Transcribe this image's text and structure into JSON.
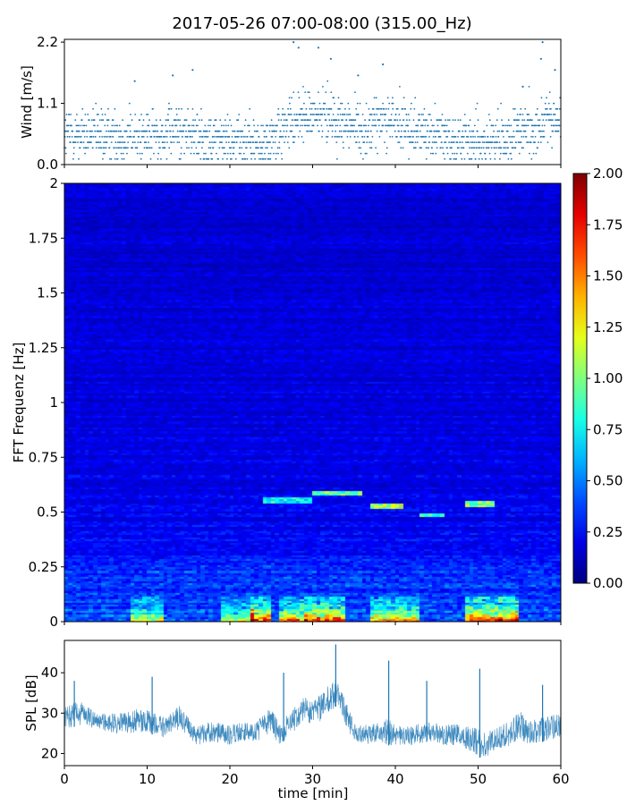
{
  "chart_data": [
    {
      "type": "scatter",
      "title": "2017-05-26 07:00-08:00 (315.00_Hz)",
      "ylabel": "Wind [m/s]",
      "xlim": [
        0,
        60
      ],
      "ylim": [
        0,
        2.25
      ],
      "yticks": [
        "0.0",
        "1.1",
        "2.2"
      ],
      "ytick_values": [
        0,
        1.1,
        2.2
      ],
      "marker_color": "#1f77b4",
      "sampling": "one reading per second, values quantized to 0.1 m/s",
      "mean_profile": {
        "x": [
          0,
          5,
          10,
          14,
          17,
          20,
          24,
          26,
          28,
          30,
          32,
          34,
          36,
          39,
          41,
          44,
          47,
          50,
          53,
          56,
          58,
          60
        ],
        "y": [
          0.55,
          0.5,
          0.5,
          0.6,
          0.45,
          0.45,
          0.35,
          0.55,
          0.8,
          0.9,
          0.85,
          0.75,
          0.6,
          0.85,
          0.65,
          0.6,
          0.45,
          0.4,
          0.45,
          0.6,
          0.8,
          0.75
        ]
      },
      "peaks": [
        {
          "x": 27.7,
          "y": 2.2
        },
        {
          "x": 28.3,
          "y": 2.1
        },
        {
          "x": 30.7,
          "y": 2.1
        },
        {
          "x": 32.2,
          "y": 1.9
        },
        {
          "x": 38.5,
          "y": 1.8
        },
        {
          "x": 57.8,
          "y": 2.2
        },
        {
          "x": 57.6,
          "y": 1.9
        },
        {
          "x": 13.1,
          "y": 1.6
        },
        {
          "x": 15.5,
          "y": 1.7
        },
        {
          "x": 8.5,
          "y": 1.5
        },
        {
          "x": 35.5,
          "y": 1.6
        },
        {
          "x": 55.4,
          "y": 1.4
        },
        {
          "x": 59.3,
          "y": 1.7
        }
      ]
    },
    {
      "type": "heatmap",
      "ylabel": "FFT Frequenz [Hz]",
      "xlim": [
        0,
        60
      ],
      "ylim": [
        0,
        2
      ],
      "yticks": [
        "0",
        "0.25",
        "0.5",
        "0.75",
        "1",
        "1.25",
        "1.5",
        "1.75",
        "2"
      ],
      "ytick_values": [
        0,
        0.25,
        0.5,
        0.75,
        1,
        1.25,
        1.5,
        1.75,
        2
      ],
      "colormap": "jet",
      "colorbar": {
        "range": [
          0,
          2
        ],
        "ticks": [
          "0.00",
          "0.25",
          "0.50",
          "0.75",
          "1.00",
          "1.25",
          "1.50",
          "1.75",
          "2.00"
        ],
        "tick_values": [
          0,
          0.25,
          0.5,
          0.75,
          1,
          1.25,
          1.5,
          1.75,
          2
        ]
      },
      "grid": {
        "time_bins": 120,
        "freq_bins": 220
      },
      "background_level": {
        "high_freq": 0.15,
        "low_freq": 0.3
      },
      "low_freq_activity": [
        {
          "t0": 8,
          "t1": 12,
          "level": 1.1
        },
        {
          "t0": 19,
          "t1": 23,
          "level": 1.0
        },
        {
          "t0": 22.5,
          "t1": 25,
          "level": 1.9
        },
        {
          "t0": 26,
          "t1": 29,
          "level": 1.5
        },
        {
          "t0": 29,
          "t1": 34,
          "level": 1.9
        },
        {
          "t0": 37,
          "t1": 43,
          "level": 1.5
        },
        {
          "t0": 48.5,
          "t1": 55,
          "level": 1.9
        }
      ],
      "tonal_streaks": [
        {
          "t0": 24,
          "t1": 30,
          "f": 0.56,
          "level": 0.7
        },
        {
          "t0": 30,
          "t1": 36,
          "f": 0.59,
          "level": 0.9
        },
        {
          "t0": 37,
          "t1": 41,
          "f": 0.53,
          "level": 1.0
        },
        {
          "t0": 43,
          "t1": 46,
          "f": 0.49,
          "level": 0.7
        },
        {
          "t0": 48.5,
          "t1": 52,
          "f": 0.54,
          "level": 0.9
        }
      ]
    },
    {
      "type": "line",
      "xlabel": "time [min]",
      "ylabel": "SPL [dB]",
      "xlim": [
        0,
        60
      ],
      "ylim": [
        17,
        48
      ],
      "xticks": [
        "0",
        "10",
        "20",
        "30",
        "40",
        "50",
        "60"
      ],
      "xtick_values": [
        0,
        10,
        20,
        30,
        40,
        50,
        60
      ],
      "yticks": [
        "20",
        "30",
        "40"
      ],
      "ytick_values": [
        20,
        30,
        40
      ],
      "line_color": "#1f77b4",
      "envelope": {
        "x": [
          0,
          2,
          4,
          6,
          8,
          10,
          12,
          14,
          15,
          16,
          18,
          20,
          22,
          23.5,
          25,
          26,
          27,
          28,
          29,
          30,
          31,
          32,
          33,
          34,
          35,
          36,
          38,
          39,
          40,
          42,
          44,
          46,
          48,
          50,
          51,
          52,
          54,
          55,
          56,
          58,
          60
        ],
        "low": [
          26,
          27,
          26,
          25,
          25,
          25,
          24,
          26,
          24,
          22,
          23,
          22,
          23,
          23,
          25,
          22,
          24,
          26,
          28,
          27,
          28,
          30,
          32,
          27,
          23,
          22,
          23,
          22,
          22,
          22,
          23,
          22,
          22,
          19,
          19,
          21,
          22,
          24,
          22,
          23,
          24
        ],
        "high": [
          32,
          33,
          30,
          30,
          31,
          31,
          29,
          32,
          29,
          27,
          28,
          27,
          28,
          29,
          32,
          27,
          30,
          32,
          34,
          33,
          35,
          37,
          39,
          33,
          28,
          27,
          28,
          29,
          27,
          27,
          28,
          27,
          28,
          26,
          25,
          27,
          28,
          31,
          28,
          29,
          30
        ]
      },
      "spikes": [
        {
          "x": 32.8,
          "y": 47
        },
        {
          "x": 39.2,
          "y": 43
        },
        {
          "x": 50.2,
          "y": 41
        },
        {
          "x": 10.6,
          "y": 39
        },
        {
          "x": 26.5,
          "y": 40
        },
        {
          "x": 43.8,
          "y": 38
        },
        {
          "x": 57.8,
          "y": 37
        },
        {
          "x": 1.2,
          "y": 38
        }
      ]
    }
  ]
}
